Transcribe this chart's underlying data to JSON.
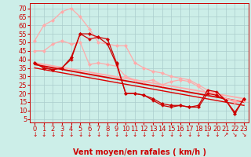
{
  "xlabel": "Vent moyen/en rafales ( km/h )",
  "ylabel_ticks": [
    5,
    10,
    15,
    20,
    25,
    30,
    35,
    40,
    45,
    50,
    55,
    60,
    65,
    70
  ],
  "xlim": [
    -0.5,
    23.5
  ],
  "ylim": [
    3,
    73
  ],
  "bg_color": "#cceee8",
  "grid_color": "#aacccc",
  "x_ticks": [
    0,
    1,
    2,
    3,
    4,
    5,
    6,
    7,
    8,
    9,
    10,
    11,
    12,
    13,
    14,
    15,
    16,
    17,
    18,
    19,
    20,
    21,
    22,
    23
  ],
  "lines": [
    {
      "x": [
        0,
        1,
        2,
        3,
        4,
        5,
        6,
        7,
        8,
        9,
        10,
        11,
        12,
        13,
        14,
        15,
        16,
        17,
        18,
        19,
        20,
        21,
        22,
        23
      ],
      "y": [
        38,
        35,
        34,
        35,
        41,
        55,
        55,
        53,
        52,
        38,
        20,
        20,
        19,
        17,
        14,
        13,
        13,
        12,
        12,
        20,
        19,
        16,
        8,
        17
      ],
      "color": "#cc0000",
      "lw": 0.9,
      "marker": "D",
      "ms": 2.0,
      "zorder": 5
    },
    {
      "x": [
        0,
        1,
        2,
        3,
        4,
        5,
        6,
        7,
        8,
        9,
        10,
        11,
        12,
        13,
        14,
        15,
        16,
        17,
        18,
        19,
        20,
        21,
        22,
        23
      ],
      "y": [
        38,
        35,
        34,
        35,
        40,
        55,
        52,
        53,
        49,
        37,
        20,
        20,
        19,
        16,
        13,
        12,
        13,
        12,
        13,
        22,
        21,
        16,
        9,
        17
      ],
      "color": "#cc0000",
      "lw": 0.9,
      "marker": "P",
      "ms": 2.2,
      "zorder": 5
    },
    {
      "x": [
        0,
        1,
        2,
        3,
        4,
        5,
        6,
        7,
        8,
        9,
        10,
        11,
        12,
        13,
        14,
        15,
        16,
        17,
        18,
        19,
        20,
        21,
        22,
        23
      ],
      "y": [
        45,
        45,
        49,
        51,
        49,
        50,
        37,
        38,
        37,
        36,
        30,
        28,
        27,
        28,
        25,
        27,
        28,
        27,
        24,
        20,
        20,
        17,
        16,
        16
      ],
      "color": "#ffaaaa",
      "lw": 0.9,
      "marker": "D",
      "ms": 2.0,
      "zorder": 4
    },
    {
      "x": [
        0,
        1,
        2,
        3,
        4,
        5,
        6,
        7,
        8,
        9,
        10,
        11,
        12,
        13,
        14,
        15,
        16,
        17,
        18,
        19,
        20,
        21,
        22,
        23
      ],
      "y": [
        51,
        60,
        63,
        68,
        70,
        65,
        58,
        50,
        49,
        48,
        48,
        38,
        35,
        33,
        32,
        30,
        29,
        28,
        25,
        22,
        20,
        17,
        15,
        16
      ],
      "color": "#ffaaaa",
      "lw": 0.9,
      "marker": "D",
      "ms": 2.0,
      "zorder": 4
    },
    {
      "x": [
        0,
        23
      ],
      "y": [
        38,
        17
      ],
      "color": "#ffaaaa",
      "lw": 1.3,
      "marker": null,
      "ms": 0,
      "zorder": 3
    },
    {
      "x": [
        0,
        23
      ],
      "y": [
        37,
        15
      ],
      "color": "#dd0000",
      "lw": 1.3,
      "marker": null,
      "ms": 0,
      "zorder": 3
    },
    {
      "x": [
        0,
        23
      ],
      "y": [
        35,
        13
      ],
      "color": "#dd0000",
      "lw": 1.0,
      "marker": null,
      "ms": 0,
      "zorder": 3
    }
  ],
  "arrows": [
    "↓",
    "↓",
    "↓",
    "↓",
    "↓",
    "↓",
    "↓",
    "↓",
    "↓",
    "↓",
    "↓",
    "↓",
    "↓",
    "↓",
    "↓",
    "↓",
    "↓",
    "↓",
    "↓",
    "↓",
    "↓",
    "↗",
    "↘",
    "↘"
  ],
  "tick_label_color": "#cc0000",
  "xlabel_color": "#cc0000",
  "xlabel_fontsize": 7,
  "tick_fontsize": 6
}
